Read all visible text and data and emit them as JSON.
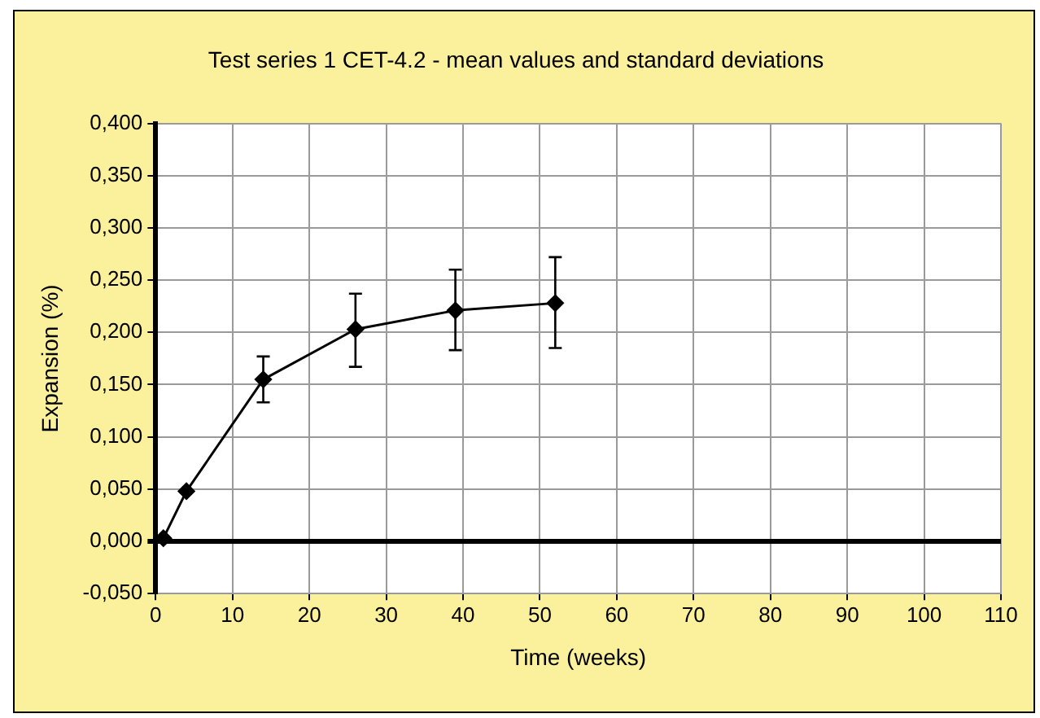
{
  "chart_data": {
    "type": "line",
    "title": "Test series 1 CET-4.2 - mean values and standard deviations",
    "xlabel": "Time (weeks)",
    "ylabel": "Expansion (%)",
    "series": [
      {
        "color": "#000000",
        "x": [
          1,
          4,
          14,
          26,
          39,
          52
        ],
        "values": [
          0.003,
          0.048,
          0.155,
          0.203,
          0.221,
          0.228
        ],
        "errors": [
          null,
          null,
          [
            0.133,
            0.177
          ],
          [
            0.167,
            0.237
          ],
          [
            0.183,
            0.26
          ],
          [
            0.185,
            0.272
          ]
        ]
      }
    ],
    "xlim": [
      0,
      110
    ],
    "xticks": [
      0,
      10,
      20,
      30,
      40,
      50,
      60,
      70,
      80,
      90,
      100,
      110
    ],
    "ylim": [
      -0.05,
      0.4
    ],
    "yticks": [
      {
        "value": -0.05,
        "label": "-0,050"
      },
      {
        "value": 0,
        "label": "0,000"
      },
      {
        "value": 0.05,
        "label": "0,050"
      },
      {
        "value": 0.1,
        "label": "0,100"
      },
      {
        "value": 0.15,
        "label": "0,150"
      },
      {
        "value": 0.2,
        "label": "0,200"
      },
      {
        "value": 0.25,
        "label": "0,250"
      },
      {
        "value": 0.3,
        "label": "0,300"
      },
      {
        "value": 0.35,
        "label": "0,350"
      },
      {
        "value": 0.4,
        "label": "0,400"
      }
    ],
    "grid": true,
    "legend": false,
    "marker": "diamond",
    "line_style": "solid"
  }
}
